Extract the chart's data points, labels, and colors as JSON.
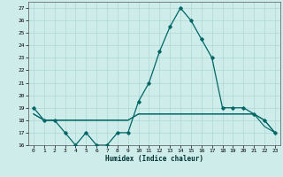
{
  "xlabel": "Humidex (Indice chaleur)",
  "background_color": "#ceecea",
  "grid_color": "#aed8d4",
  "line_color": "#006666",
  "xlim": [
    -0.5,
    23.5
  ],
  "ylim": [
    16,
    27.5
  ],
  "yticks": [
    16,
    17,
    18,
    19,
    20,
    21,
    22,
    23,
    24,
    25,
    26,
    27
  ],
  "xticks": [
    0,
    1,
    2,
    3,
    4,
    5,
    6,
    7,
    8,
    9,
    10,
    11,
    12,
    13,
    14,
    15,
    16,
    17,
    18,
    19,
    20,
    21,
    22,
    23
  ],
  "series1": [
    19,
    18,
    18,
    17,
    16,
    17,
    16,
    16,
    17,
    17,
    19.5,
    21,
    23.5,
    25.5,
    27,
    26,
    24.5,
    23,
    19,
    19,
    19,
    18.5,
    18,
    17
  ],
  "series2": [
    18.5,
    18,
    18,
    18,
    18,
    18,
    18,
    18,
    18,
    18,
    18.5,
    18.5,
    18.5,
    18.5,
    18.5,
    18.5,
    18.5,
    18.5,
    18.5,
    18.5,
    18.5,
    18.5,
    18,
    17
  ],
  "series3": [
    18.5,
    18,
    18,
    18,
    18,
    18,
    18,
    18,
    18,
    18,
    18.5,
    18.5,
    18.5,
    18.5,
    18.5,
    18.5,
    18.5,
    18.5,
    18.5,
    18.5,
    18.5,
    18.5,
    17.5,
    17
  ],
  "figsize": [
    3.2,
    2.0
  ],
  "dpi": 100
}
